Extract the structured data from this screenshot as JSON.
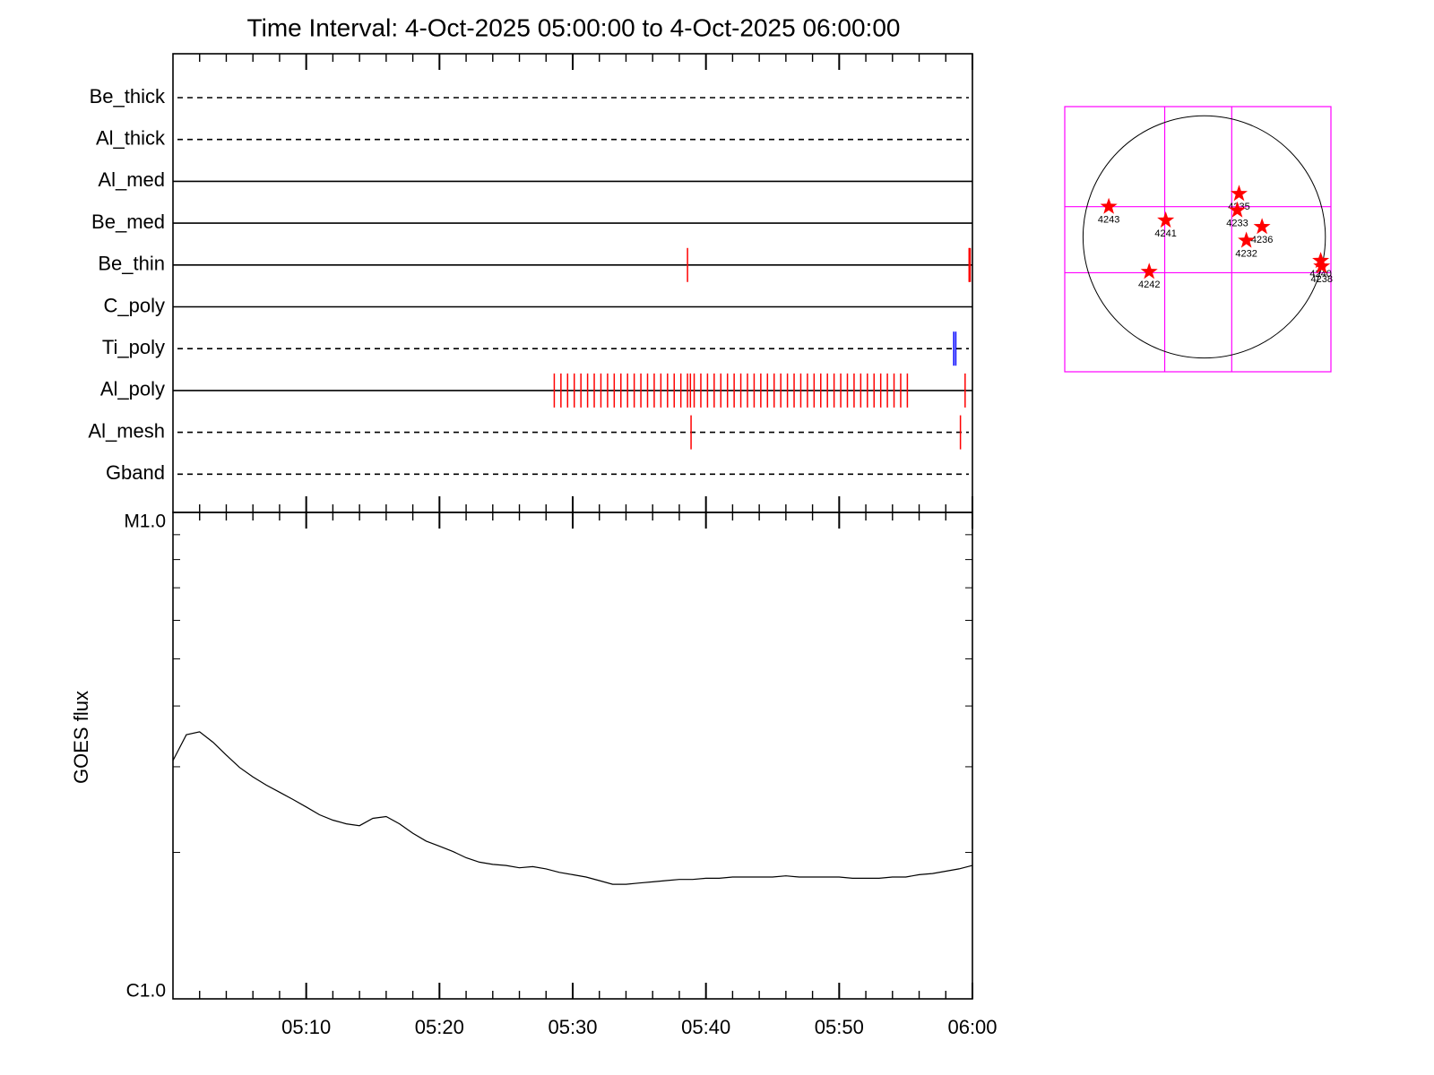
{
  "chart_data": [
    {
      "type": "timeline",
      "title": "Time Interval:  4-Oct-2025 05:00:00 to  4-Oct-2025 06:00:00",
      "rows": [
        {
          "name": "Be_thick",
          "style": "dashed",
          "color": "#ff0000",
          "events": []
        },
        {
          "name": "Al_thick",
          "style": "dashed",
          "color": "#ff0000",
          "events": []
        },
        {
          "name": "Al_med",
          "style": "solid",
          "color": "#ff0000",
          "events": []
        },
        {
          "name": "Be_med",
          "style": "solid",
          "color": "#ff0000",
          "events": []
        },
        {
          "name": "Be_thin",
          "style": "solid",
          "color": "#ff0000",
          "events": [
            "05:38:37",
            "05:59:45",
            "05:59:50"
          ]
        },
        {
          "name": "C_poly",
          "style": "solid",
          "color": "#ff0000",
          "events": []
        },
        {
          "name": "Ti_poly",
          "style": "dashed",
          "color": "#0000ff",
          "events": [
            "05:58:36",
            "05:58:45"
          ]
        },
        {
          "name": "Al_poly",
          "style": "solid",
          "color": "#ff0000",
          "events": [
            "05:28:37",
            "05:29:07",
            "05:29:37",
            "05:30:07",
            "05:30:37",
            "05:31:07",
            "05:31:37",
            "05:32:07",
            "05:32:37",
            "05:33:07",
            "05:33:37",
            "05:34:07",
            "05:34:37",
            "05:35:07",
            "05:35:37",
            "05:36:07",
            "05:36:37",
            "05:37:07",
            "05:37:37",
            "05:38:07",
            "05:38:37",
            "05:38:50",
            "05:39:07",
            "05:39:37",
            "05:40:07",
            "05:40:37",
            "05:41:07",
            "05:41:37",
            "05:42:07",
            "05:42:37",
            "05:43:07",
            "05:43:37",
            "05:44:07",
            "05:44:37",
            "05:45:07",
            "05:45:37",
            "05:46:07",
            "05:46:37",
            "05:47:07",
            "05:47:37",
            "05:48:07",
            "05:48:37",
            "05:49:07",
            "05:49:37",
            "05:50:07",
            "05:50:37",
            "05:51:07",
            "05:51:37",
            "05:52:07",
            "05:52:37",
            "05:53:07",
            "05:53:37",
            "05:54:07",
            "05:54:37",
            "05:55:07",
            "05:59:27"
          ]
        },
        {
          "name": "Al_mesh",
          "style": "dashed",
          "color": "#ff0000",
          "events": [
            "05:38:53",
            "05:59:06"
          ]
        },
        {
          "name": "Gband",
          "style": "dashed",
          "color": "#ff0000",
          "events": []
        }
      ]
    },
    {
      "type": "line",
      "ylabel": "GOES flux",
      "color": "#000000",
      "log_y": true,
      "x": [
        "05:00",
        "05:01",
        "05:02",
        "05:03",
        "05:04",
        "05:05",
        "05:06",
        "05:07",
        "05:08",
        "05:09",
        "05:10",
        "05:11",
        "05:12",
        "05:13",
        "05:14",
        "05:15",
        "05:16",
        "05:17",
        "05:18",
        "05:19",
        "05:20",
        "05:21",
        "05:22",
        "05:23",
        "05:24",
        "05:25",
        "05:26",
        "05:27",
        "05:28",
        "05:29",
        "05:30",
        "05:31",
        "05:32",
        "05:33",
        "05:34",
        "05:35",
        "05:36",
        "05:37",
        "05:38",
        "05:39",
        "05:40",
        "05:41",
        "05:42",
        "05:43",
        "05:44",
        "05:45",
        "05:46",
        "05:47",
        "05:48",
        "05:49",
        "05:50",
        "05:51",
        "05:52",
        "05:53",
        "05:54",
        "05:55",
        "05:56",
        "05:57",
        "05:58",
        "05:59",
        "06:00"
      ],
      "values": [
        3.09e-06,
        3.49e-06,
        3.54e-06,
        3.37e-06,
        3.17e-06,
        2.99e-06,
        2.86e-06,
        2.75e-06,
        2.66e-06,
        2.57e-06,
        2.48e-06,
        2.39e-06,
        2.33e-06,
        2.29e-06,
        2.27e-06,
        2.35e-06,
        2.37e-06,
        2.29e-06,
        2.19e-06,
        2.11e-06,
        2.06e-06,
        2.01e-06,
        1.95e-06,
        1.91e-06,
        1.89e-06,
        1.88e-06,
        1.86e-06,
        1.87e-06,
        1.85e-06,
        1.82e-06,
        1.8e-06,
        1.78e-06,
        1.75e-06,
        1.72e-06,
        1.72e-06,
        1.73e-06,
        1.74e-06,
        1.75e-06,
        1.76e-06,
        1.76e-06,
        1.77e-06,
        1.77e-06,
        1.78e-06,
        1.78e-06,
        1.78e-06,
        1.78e-06,
        1.79e-06,
        1.78e-06,
        1.78e-06,
        1.78e-06,
        1.78e-06,
        1.77e-06,
        1.77e-06,
        1.77e-06,
        1.78e-06,
        1.78e-06,
        1.8e-06,
        1.81e-06,
        1.83e-06,
        1.85e-06,
        1.88e-06
      ],
      "xlim": [
        "05:00",
        "06:00"
      ],
      "xticks": [
        "05:10",
        "05:20",
        "05:30",
        "05:40",
        "05:50",
        "06:00"
      ],
      "xminorticks": [
        "05:02",
        "05:04",
        "05:06",
        "05:08",
        "05:12",
        "05:14",
        "05:16",
        "05:18",
        "05:22",
        "05:24",
        "05:26",
        "05:28",
        "05:32",
        "05:34",
        "05:36",
        "05:38",
        "05:42",
        "05:44",
        "05:46",
        "05:48",
        "05:52",
        "05:54",
        "05:56",
        "05:58"
      ],
      "ylim": [
        1e-06,
        1e-05
      ],
      "yticks": [
        {
          "value": 1e-06,
          "label": "C1.0"
        },
        {
          "value": 1e-05,
          "label": "M1.0"
        }
      ],
      "yminorticks": [
        2e-06,
        3e-06,
        4e-06,
        5e-06,
        6e-06,
        7e-06,
        8e-06,
        9e-06
      ]
    },
    {
      "type": "map",
      "xlim": [
        -1105,
        1004
      ],
      "ylim": [
        -1069,
        1033
      ],
      "sun_radius": 960,
      "grid_color": "#ff00ff",
      "grid_x": [
        -313,
        218
      ],
      "grid_y": [
        240,
        -284
      ],
      "marker_color": "#ff0000",
      "regions": [
        {
          "label": "4243",
          "x": -756,
          "y": 240
        },
        {
          "label": "4241",
          "x": -305,
          "y": 131
        },
        {
          "label": "4235",
          "x": 276,
          "y": 342
        },
        {
          "label": "4233",
          "x": 262,
          "y": 211
        },
        {
          "label": "4236",
          "x": 458,
          "y": 80
        },
        {
          "label": "4232",
          "x": 334,
          "y": -29
        },
        {
          "label": "4242",
          "x": -436,
          "y": -276
        },
        {
          "label": "4240",
          "x": 923,
          "y": -189
        },
        {
          "label": "4238",
          "x": 931,
          "y": -233
        }
      ]
    }
  ]
}
